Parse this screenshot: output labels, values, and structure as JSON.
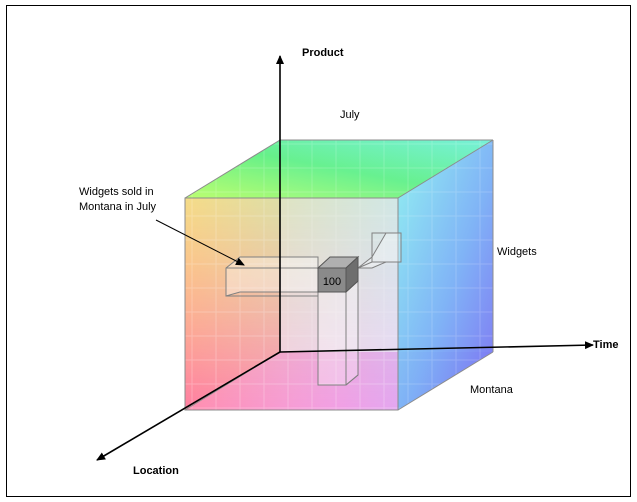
{
  "diagram": {
    "axes": {
      "vertical_label": "Product",
      "horizontal_label": "Time",
      "depth_label": "Location"
    },
    "labels": {
      "top_member": "July",
      "right_member": "Widgets",
      "bottom_member": "Montana"
    },
    "callout": {
      "line1": "Widgets sold in",
      "line2": "Montana in July"
    },
    "cell_value": "100",
    "colors": {
      "cell_fill": "#8a8a8a",
      "cube_edge": "#8c8c8c",
      "axis": "#000000"
    }
  }
}
